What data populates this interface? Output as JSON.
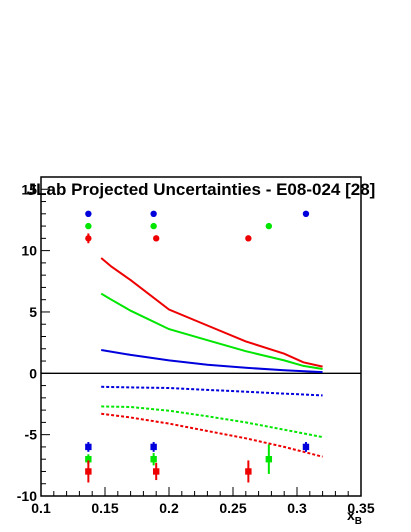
{
  "chart_data": {
    "type": "scatter",
    "title": "JLab Projected Uncertainties - E08-024 [28]",
    "xlabel": "x",
    "xlabel_sub": "B",
    "ylabel": "",
    "xlim": [
      0.1,
      0.35
    ],
    "ylim": [
      -10,
      16
    ],
    "x_ticks": [
      0.1,
      0.15,
      0.2,
      0.25,
      0.3,
      0.35
    ],
    "x_tick_labels": [
      "0.1",
      "0.15",
      "0.2",
      "0.25",
      "0.3",
      "0.35"
    ],
    "y_ticks": [
      -10,
      -5,
      0,
      5,
      10,
      15
    ],
    "y_tick_labels": [
      "-10",
      "-5",
      "0",
      "5",
      "10",
      "15"
    ],
    "zero_line": true,
    "grid": false,
    "colors": {
      "blue": "#0000dd",
      "green": "#00e600",
      "red": "#ee0000"
    },
    "point_series": [
      {
        "color": "blue",
        "marker": "circle",
        "x": [
          0.137,
          0.188,
          0.307
        ],
        "y": [
          13,
          13,
          13
        ],
        "yerr": [
          0,
          0,
          0
        ]
      },
      {
        "color": "green",
        "marker": "circle",
        "x": [
          0.137,
          0.188,
          0.278
        ],
        "y": [
          12,
          12,
          12
        ],
        "yerr": [
          0,
          0,
          0
        ]
      },
      {
        "color": "red",
        "marker": "circle",
        "x": [
          0.137,
          0.19,
          0.262
        ],
        "y": [
          11,
          11,
          11
        ],
        "yerr": [
          0.4,
          0,
          0
        ]
      },
      {
        "color": "blue",
        "marker": "square",
        "x": [
          0.137,
          0.188,
          0.307
        ],
        "y": [
          -6,
          -6,
          -6
        ],
        "yerr": [
          0.4,
          0.4,
          0.4
        ]
      },
      {
        "color": "green",
        "marker": "square",
        "x": [
          0.137,
          0.188,
          0.278
        ],
        "y": [
          -7,
          -7,
          -7
        ],
        "yerr": [
          0.4,
          0.5,
          1.2
        ]
      },
      {
        "color": "red",
        "marker": "square",
        "x": [
          0.137,
          0.19,
          0.262
        ],
        "y": [
          -8,
          -8,
          -8
        ],
        "yerr": [
          0.9,
          0.7,
          0.9
        ]
      }
    ],
    "curves": [
      {
        "color": "red",
        "style": "solid",
        "x": [
          0.147,
          0.155,
          0.17,
          0.2,
          0.23,
          0.26,
          0.29,
          0.305,
          0.32
        ],
        "y": [
          9.4,
          8.7,
          7.6,
          5.2,
          3.9,
          2.6,
          1.6,
          0.9,
          0.55
        ]
      },
      {
        "color": "green",
        "style": "solid",
        "x": [
          0.147,
          0.155,
          0.17,
          0.2,
          0.23,
          0.26,
          0.29,
          0.305,
          0.32
        ],
        "y": [
          6.5,
          6.0,
          5.1,
          3.6,
          2.7,
          1.8,
          1.05,
          0.6,
          0.35
        ]
      },
      {
        "color": "blue",
        "style": "solid",
        "x": [
          0.147,
          0.17,
          0.2,
          0.23,
          0.26,
          0.29,
          0.32
        ],
        "y": [
          1.9,
          1.5,
          1.05,
          0.7,
          0.45,
          0.25,
          0.1
        ]
      },
      {
        "color": "blue",
        "style": "dashed",
        "x": [
          0.147,
          0.17,
          0.2,
          0.23,
          0.26,
          0.29,
          0.32
        ],
        "y": [
          -1.1,
          -1.15,
          -1.2,
          -1.35,
          -1.5,
          -1.65,
          -1.8
        ]
      },
      {
        "color": "green",
        "style": "dashed",
        "x": [
          0.147,
          0.17,
          0.2,
          0.23,
          0.26,
          0.29,
          0.32
        ],
        "y": [
          -2.7,
          -2.75,
          -3.05,
          -3.5,
          -4.0,
          -4.6,
          -5.2
        ]
      },
      {
        "color": "red",
        "style": "dashed",
        "x": [
          0.147,
          0.17,
          0.2,
          0.23,
          0.26,
          0.29,
          0.32
        ],
        "y": [
          -3.3,
          -3.6,
          -4.1,
          -4.7,
          -5.3,
          -6.0,
          -6.8
        ]
      }
    ]
  }
}
